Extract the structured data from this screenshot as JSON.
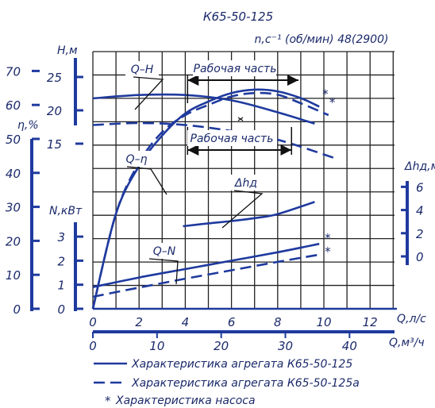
{
  "chart_data": {
    "type": "line",
    "title": "К65-50-125",
    "speed_label": "n,c⁻¹ (об/мин) 48(2900)",
    "x_axis_q_ls": {
      "label": "Q,л/c",
      "ticks": [
        0,
        2,
        4,
        6,
        8,
        10,
        12
      ],
      "range": [
        0,
        13
      ]
    },
    "x_axis_q_m3h": {
      "label": "Q,м³/ч",
      "ticks": [
        0,
        10,
        20,
        30,
        40
      ]
    },
    "y_axes": {
      "head": {
        "label": "H,м",
        "ticks": [
          15,
          20,
          25
        ]
      },
      "efficiency": {
        "label": "η,%",
        "ticks": [
          0,
          10,
          20,
          30,
          40,
          50,
          60,
          70
        ]
      },
      "power": {
        "label": "N,кВт",
        "ticks": [
          0,
          1,
          2,
          3
        ]
      },
      "npsh": {
        "label": "Δhд,м",
        "ticks": [
          0,
          2,
          4,
          6
        ]
      }
    },
    "curve_labels": {
      "qh": "Q–H",
      "qeta": "Q–η",
      "qn": "Q–N",
      "dh": "Δhд"
    },
    "working_range_label": "Рабочая часть",
    "working_range_upper_q": [
      4.1,
      8.9
    ],
    "working_range_lower_q": [
      4.1,
      8.6
    ],
    "series": [
      {
        "name": "Характеристика агрегата К65-50-125",
        "style": "solid",
        "quantity": "H",
        "x": [
          0,
          2,
          4,
          6,
          8,
          9.6
        ],
        "y": [
          21.8,
          22.3,
          22.3,
          21.5,
          19.7,
          18.0
        ]
      },
      {
        "name": "Характеристика агрегата К65-50-125а",
        "style": "dashed",
        "quantity": "H",
        "x": [
          0,
          2,
          4,
          6,
          8,
          10.5
        ],
        "y": [
          17.8,
          18.1,
          17.8,
          16.9,
          15.6,
          12.8
        ]
      },
      {
        "name": "Характеристика агрегата К65-50-125",
        "style": "solid",
        "quantity": "η",
        "x": [
          0,
          1,
          2,
          3,
          4,
          5,
          6,
          7,
          8,
          9,
          9.8
        ],
        "y": [
          0,
          28,
          42,
          51,
          57.5,
          61,
          63.5,
          64.5,
          64,
          62,
          59.5
        ]
      },
      {
        "name": "Характеристика агрегата К65-50-125а",
        "style": "dashed",
        "quantity": "η",
        "x": [
          0,
          1,
          2,
          3,
          4,
          5,
          6,
          7,
          8,
          9,
          10.2
        ],
        "y": [
          0,
          28,
          43,
          52,
          57,
          60,
          62.5,
          63.5,
          63,
          60.5,
          57
        ]
      },
      {
        "name": "Характеристика агрегата К65-50-125",
        "style": "solid",
        "quantity": "N",
        "x": [
          0,
          2,
          4,
          6,
          8,
          9.8
        ],
        "y": [
          0.9,
          1.3,
          1.65,
          2.0,
          2.35,
          2.7
        ]
      },
      {
        "name": "Характеристика агрегата К65-50-125а",
        "style": "dashed",
        "quantity": "N",
        "x": [
          0,
          2,
          4,
          6,
          8,
          9.8
        ],
        "y": [
          0.5,
          0.88,
          1.25,
          1.6,
          1.95,
          2.25
        ]
      },
      {
        "name": "Δhд",
        "style": "solid",
        "quantity": "Δhд",
        "x": [
          3.9,
          5,
          6,
          7,
          8,
          9.6
        ],
        "y": [
          2.6,
          2.85,
          3.05,
          3.3,
          3.65,
          4.7
        ]
      }
    ],
    "pump_markers": [
      {
        "x": 9.8,
        "y": 63,
        "quantity": "η"
      },
      {
        "x": 10.1,
        "y": 60.5,
        "quantity": "η"
      },
      {
        "x": 9.9,
        "y": 2.9,
        "quantity": "N"
      },
      {
        "x": 9.9,
        "y": 2.35,
        "quantity": "N"
      }
    ],
    "legend": {
      "position": "bottom",
      "entries": [
        {
          "style": "solid",
          "label": "Характеристика агрегата К65-50-125"
        },
        {
          "style": "dashed",
          "label": "Характеристика агрегата К65-50-125а"
        },
        {
          "style": "star",
          "label": "Характеристика насоса"
        }
      ]
    },
    "grid": true
  }
}
